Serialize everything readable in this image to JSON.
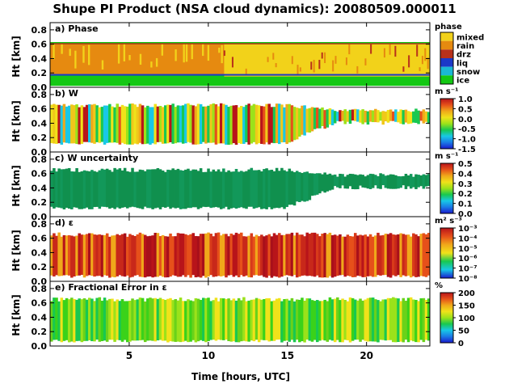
{
  "title": "Shupe PI Product (NSA cloud dynamics): 20080509.000011",
  "xlabel": "Time [hours, UTC]",
  "x_ticks": [
    "5",
    "10",
    "15",
    "20"
  ],
  "x_tick_values": [
    5,
    10,
    15,
    20
  ],
  "xlim": [
    0,
    24
  ],
  "y_ticks": [
    "0.0",
    "0.2",
    "0.4",
    "0.6",
    "0.8"
  ],
  "ylabel": "Ht [km]",
  "ylim": [
    0,
    0.9
  ],
  "colors": {
    "mixed": "#f2d21a",
    "rain": "#e68a10",
    "drz": "#b8311a",
    "liq": "#1b38c8",
    "snow": "#1ab8d4",
    "ice": "#14c814",
    "dark_green": "#10904e"
  },
  "chart_data": [
    {
      "type": "heatmap",
      "panel_title": "a) Phase",
      "colorbar_title": "phase",
      "legend": [
        "mixed",
        "rain",
        "drz",
        "liq",
        "snow",
        "ice"
      ],
      "legend_colors": [
        "#f2d21a",
        "#e68a10",
        "#b8311a",
        "#1b38c8",
        "#1ab8d4",
        "#14c814"
      ],
      "layers": [
        {
          "class": "ice",
          "from_x": 0,
          "to_x": 24,
          "bottom": 0.02,
          "top": 0.17
        },
        {
          "class": "rain",
          "from_x": 0,
          "to_x": 17,
          "bottom": 0.17,
          "top": 0.62
        },
        {
          "class": "mixed",
          "from_x": 11,
          "to_x": 24,
          "bottom": 0.15,
          "top": 0.6
        },
        {
          "class": "ice",
          "from_x": 0,
          "to_x": 24,
          "bottom": 0.6,
          "top": 0.63
        }
      ]
    },
    {
      "type": "heatmap",
      "panel_title": "b) W",
      "colorbar_title": "m s⁻¹",
      "colorbar_ticks": [
        "1.0",
        "0.5",
        "0.0",
        "-0.5",
        "-1.0",
        "-1.5"
      ],
      "colorbar_range": [
        -1.5,
        1.0
      ],
      "cloud_top": 0.65,
      "cloud_bottom": 0.1
    },
    {
      "type": "heatmap",
      "panel_title": "c) W uncertainty",
      "colorbar_title": "m s⁻¹",
      "colorbar_ticks": [
        "0.5",
        "0.4",
        "0.3",
        "0.2",
        "0.1",
        "0.0"
      ],
      "colorbar_range": [
        0.0,
        0.5
      ],
      "cloud_top": 0.65,
      "cloud_bottom": 0.1
    },
    {
      "type": "heatmap",
      "panel_title": "d) ε",
      "colorbar_title": "m² s⁻³",
      "colorbar_ticks": [
        "10⁻³",
        "10⁻⁴",
        "10⁻⁵",
        "10⁻⁶",
        "10⁻⁷",
        "10⁻⁸"
      ],
      "colorbar_exponents": [
        -3,
        -4,
        -5,
        -6,
        -7,
        -8
      ],
      "cloud_top": 0.65,
      "cloud_bottom": 0.05
    },
    {
      "type": "heatmap",
      "panel_title": "e) Fractional Error in ε",
      "colorbar_title": "%",
      "colorbar_ticks": [
        "200",
        "150",
        "100",
        "50",
        "0"
      ],
      "colorbar_range": [
        0,
        200
      ],
      "cloud_top": 0.65,
      "cloud_bottom": 0.05
    }
  ]
}
